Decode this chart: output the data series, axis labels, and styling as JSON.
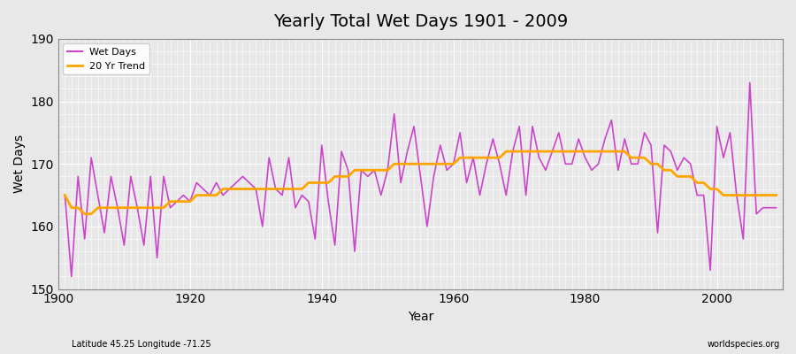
{
  "title": "Yearly Total Wet Days 1901 - 2009",
  "xlabel": "Year",
  "ylabel": "Wet Days",
  "subtitle": "Latitude 45.25 Longitude -71.25",
  "watermark": "worldspecies.org",
  "ylim": [
    150,
    190
  ],
  "yticks": [
    150,
    160,
    170,
    180,
    190
  ],
  "line_color": "#cc44cc",
  "trend_color": "#ffa500",
  "bg_color": "#e8e8e8",
  "plot_bg_color": "#e8e8e8",
  "years": [
    1901,
    1902,
    1903,
    1904,
    1905,
    1906,
    1907,
    1908,
    1909,
    1910,
    1911,
    1912,
    1913,
    1914,
    1915,
    1916,
    1917,
    1918,
    1919,
    1920,
    1921,
    1922,
    1923,
    1924,
    1925,
    1926,
    1927,
    1928,
    1929,
    1930,
    1931,
    1932,
    1933,
    1934,
    1935,
    1936,
    1937,
    1938,
    1939,
    1940,
    1941,
    1942,
    1943,
    1944,
    1945,
    1946,
    1947,
    1948,
    1949,
    1950,
    1951,
    1952,
    1953,
    1954,
    1955,
    1956,
    1957,
    1958,
    1959,
    1960,
    1961,
    1962,
    1963,
    1964,
    1965,
    1966,
    1967,
    1968,
    1969,
    1970,
    1971,
    1972,
    1973,
    1974,
    1975,
    1976,
    1977,
    1978,
    1979,
    1980,
    1981,
    1982,
    1983,
    1984,
    1985,
    1986,
    1987,
    1988,
    1989,
    1990,
    1991,
    1992,
    1993,
    1994,
    1995,
    1996,
    1997,
    1998,
    1999,
    2000,
    2001,
    2002,
    2003,
    2004,
    2005,
    2006,
    2007,
    2008,
    2009
  ],
  "wet_days": [
    165,
    152,
    168,
    158,
    171,
    165,
    159,
    168,
    163,
    157,
    168,
    163,
    157,
    168,
    155,
    168,
    163,
    164,
    165,
    164,
    167,
    166,
    165,
    167,
    165,
    166,
    167,
    168,
    167,
    166,
    160,
    171,
    166,
    165,
    171,
    163,
    165,
    164,
    158,
    173,
    164,
    157,
    172,
    169,
    156,
    169,
    168,
    169,
    165,
    169,
    178,
    167,
    172,
    176,
    168,
    160,
    168,
    173,
    169,
    170,
    175,
    167,
    171,
    165,
    170,
    174,
    170,
    165,
    172,
    176,
    165,
    176,
    171,
    169,
    172,
    175,
    170,
    170,
    174,
    171,
    169,
    170,
    174,
    177,
    169,
    174,
    170,
    170,
    175,
    173,
    159,
    173,
    172,
    169,
    171,
    170,
    165,
    165,
    153,
    176,
    171,
    175,
    165,
    158,
    183,
    162,
    163,
    163,
    163
  ],
  "trend_years": [
    1901,
    1902,
    1903,
    1904,
    1905,
    1906,
    1907,
    1908,
    1909,
    1910,
    1911,
    1912,
    1913,
    1914,
    1915,
    1916,
    1917,
    1918,
    1919,
    1920,
    1921,
    1922,
    1923,
    1924,
    1925,
    1926,
    1927,
    1928,
    1929,
    1930,
    1931,
    1932,
    1933,
    1934,
    1935,
    1936,
    1937,
    1938,
    1939,
    1940,
    1941,
    1942,
    1943,
    1944,
    1945,
    1946,
    1947,
    1948,
    1949,
    1950,
    1951,
    1952,
    1953,
    1954,
    1955,
    1956,
    1957,
    1958,
    1959,
    1960,
    1961,
    1962,
    1963,
    1964,
    1965,
    1966,
    1967,
    1968,
    1969,
    1970,
    1971,
    1972,
    1973,
    1974,
    1975,
    1976,
    1977,
    1978,
    1979,
    1980,
    1981,
    1982,
    1983,
    1984,
    1985,
    1986,
    1987,
    1988,
    1989,
    1990,
    1991,
    1992,
    1993,
    1994,
    1995,
    1996,
    1997,
    1998,
    1999,
    2000,
    2001,
    2002,
    2003,
    2004,
    2005,
    2006,
    2007,
    2008,
    2009
  ],
  "trend_values": [
    165,
    163,
    163,
    162,
    162,
    163,
    163,
    163,
    163,
    163,
    163,
    163,
    163,
    163,
    163,
    163,
    164,
    164,
    164,
    164,
    165,
    165,
    165,
    165,
    166,
    166,
    166,
    166,
    166,
    166,
    166,
    166,
    166,
    166,
    166,
    166,
    166,
    167,
    167,
    167,
    167,
    168,
    168,
    168,
    169,
    169,
    169,
    169,
    169,
    169,
    170,
    170,
    170,
    170,
    170,
    170,
    170,
    170,
    170,
    170,
    171,
    171,
    171,
    171,
    171,
    171,
    171,
    172,
    172,
    172,
    172,
    172,
    172,
    172,
    172,
    172,
    172,
    172,
    172,
    172,
    172,
    172,
    172,
    172,
    172,
    172,
    171,
    171,
    171,
    170,
    170,
    169,
    169,
    168,
    168,
    168,
    167,
    167,
    166,
    166,
    165,
    165,
    165,
    165,
    165,
    165,
    165,
    165,
    165
  ]
}
